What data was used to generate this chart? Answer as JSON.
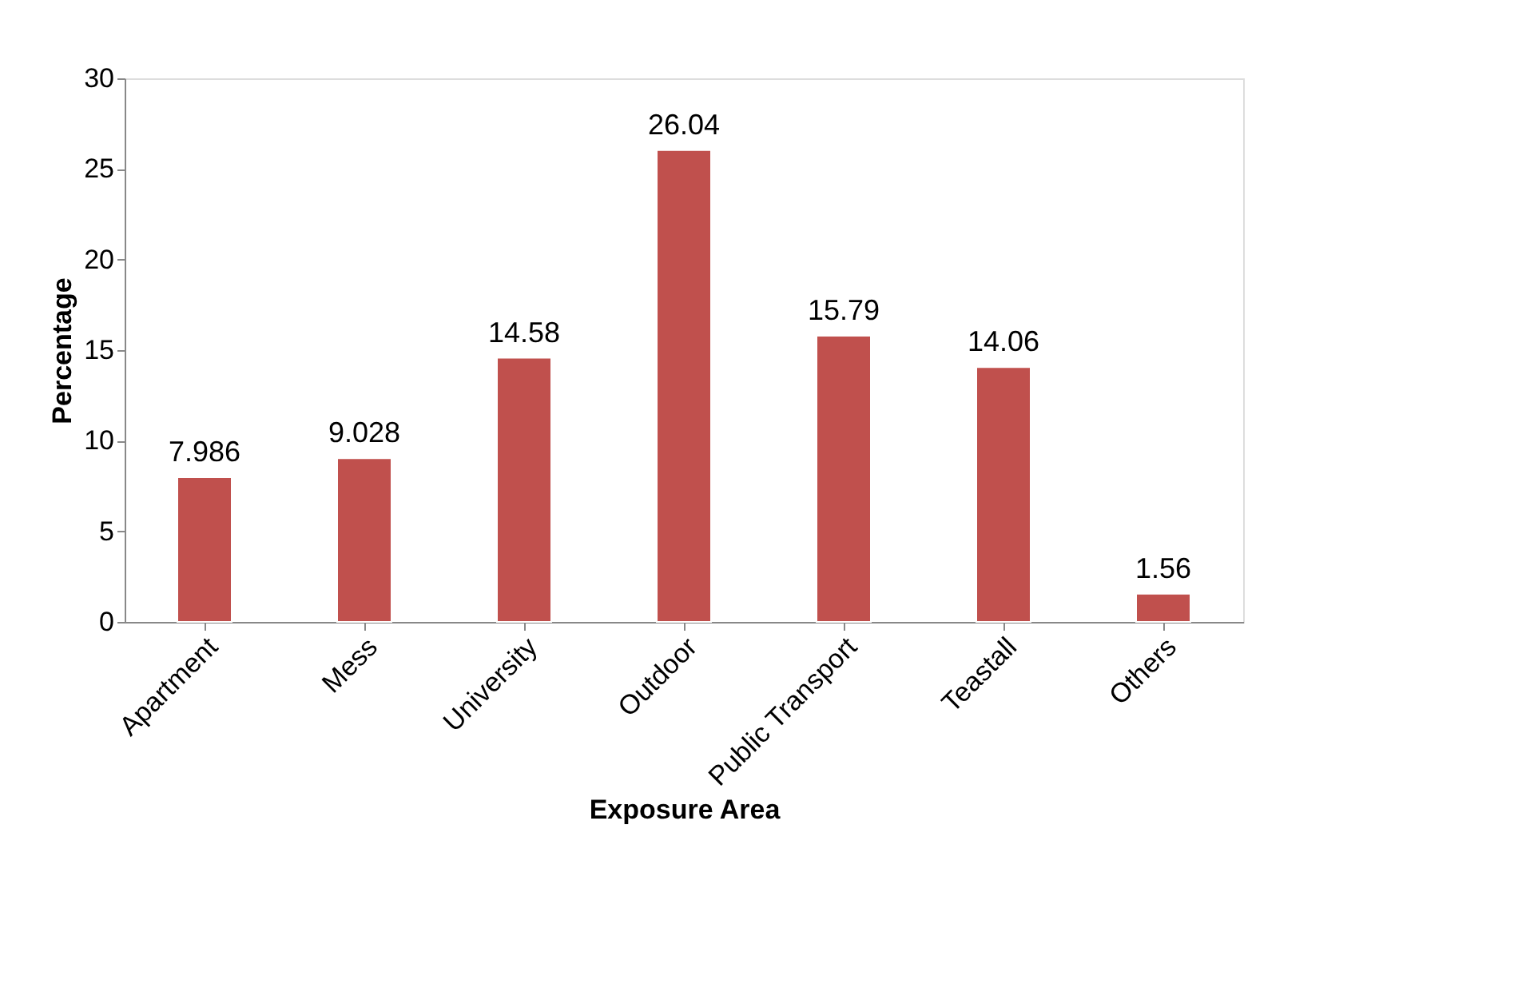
{
  "chart_data": {
    "type": "bar",
    "xlabel": "Exposure Area",
    "ylabel": "Percentage",
    "categories": [
      "Apartment",
      "Mess",
      "University",
      "Outdoor",
      "Public Transport",
      "Teastall",
      "Others"
    ],
    "values": [
      7.986,
      9.028,
      14.58,
      26.04,
      15.79,
      14.06,
      1.56
    ],
    "color": "#c0504d",
    "ylim": [
      0,
      30
    ],
    "yticks": [
      0,
      5,
      10,
      15,
      20,
      25,
      30
    ],
    "data_labels": true,
    "grid": false
  }
}
